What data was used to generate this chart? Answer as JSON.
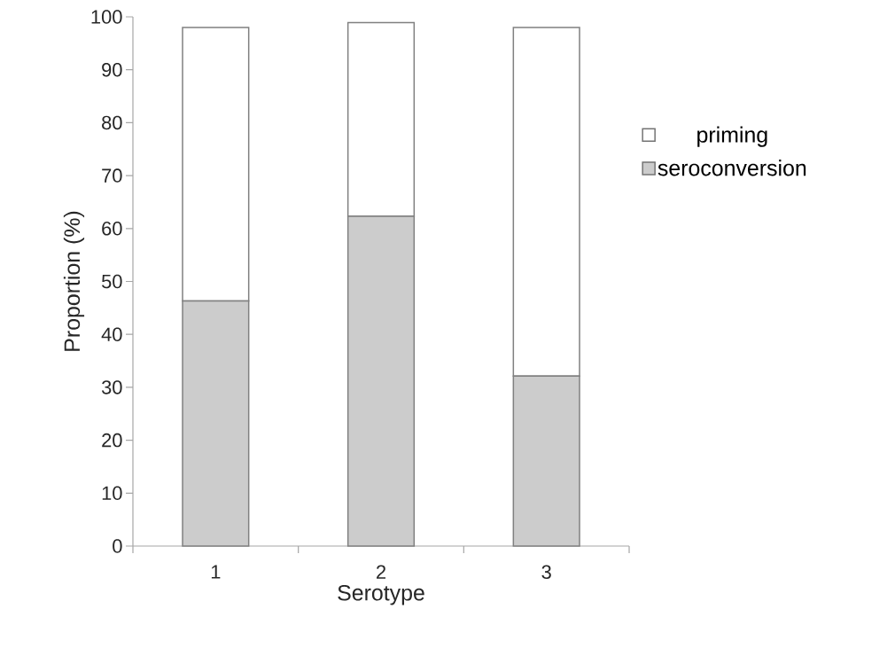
{
  "chart_data": {
    "type": "bar",
    "stacked": true,
    "xlabel": "Serotype",
    "ylabel": "Proportion (%)",
    "categories": [
      "1",
      "2",
      "3"
    ],
    "series": [
      {
        "name": "seroconversion",
        "color": "#cccccc",
        "values": [
          46.3,
          62.3,
          32.1
        ]
      },
      {
        "name": "priming",
        "color": "#ffffff",
        "values": [
          51.7,
          36.6,
          65.9
        ]
      }
    ],
    "ylim": [
      0,
      100
    ],
    "yticks": [
      0,
      10,
      20,
      30,
      40,
      50,
      60,
      70,
      80,
      90,
      100
    ],
    "legend": "right"
  }
}
